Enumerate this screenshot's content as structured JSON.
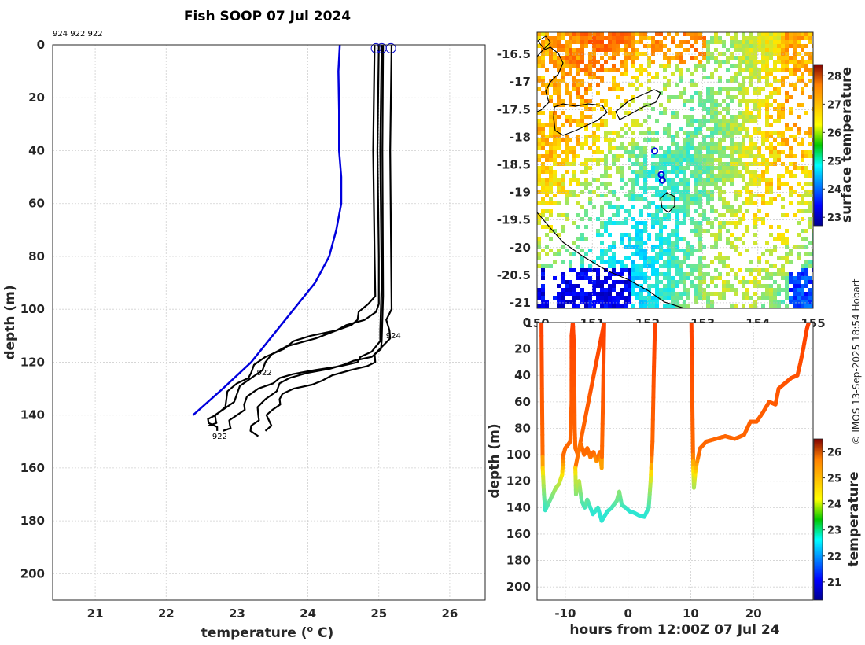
{
  "chart_data": [
    {
      "id": "profile",
      "type": "line",
      "title": "Fish SOOP 07 Jul 2024",
      "header_ids": "924 922 922",
      "xlabel": "temperature (",
      "xlabel_sup": "o",
      "xlabel_end": " C)",
      "ylabel": "depth (m)",
      "xlim": [
        20.4,
        26.5
      ],
      "ylim": [
        210,
        0
      ],
      "xticks": [
        "21",
        "22",
        "23",
        "24",
        "25",
        "26"
      ],
      "yticks": [
        "0",
        "20",
        "40",
        "60",
        "80",
        "100",
        "120",
        "140",
        "160",
        "180",
        "200"
      ],
      "series": [
        {
          "name": "climatology",
          "color": "#0000dd",
          "points": [
            [
              24.45,
              0
            ],
            [
              24.43,
              10
            ],
            [
              24.44,
              25
            ],
            [
              24.44,
              40
            ],
            [
              24.47,
              50
            ],
            [
              24.47,
              60
            ],
            [
              24.4,
              70
            ],
            [
              24.3,
              80
            ],
            [
              24.1,
              90
            ],
            [
              23.8,
              100
            ],
            [
              23.5,
              110
            ],
            [
              23.2,
              120
            ],
            [
              22.8,
              130
            ],
            [
              22.38,
              140
            ]
          ]
        },
        {
          "name": "profile-1",
          "color": "#000000",
          "points": [
            [
              24.94,
              0
            ],
            [
              24.92,
              40
            ],
            [
              24.94,
              80
            ],
            [
              24.95,
              95
            ],
            [
              24.85,
              98
            ],
            [
              24.7,
              104
            ],
            [
              24.4,
              108
            ],
            [
              23.8,
              112
            ],
            [
              23.4,
              118
            ],
            [
              23.2,
              124
            ],
            [
              23.0,
              128
            ],
            [
              22.85,
              134
            ],
            [
              22.7,
              140
            ],
            [
              22.6,
              143
            ],
            [
              22.72,
              146
            ]
          ]
        },
        {
          "name": "profile-2",
          "color": "#000000",
          "points": [
            [
              25.0,
              0
            ],
            [
              24.98,
              40
            ],
            [
              25.0,
              80
            ],
            [
              25.0,
              98
            ],
            [
              24.8,
              104
            ],
            [
              24.4,
              108
            ],
            [
              23.7,
              114
            ],
            [
              23.4,
              120
            ],
            [
              23.2,
              126
            ],
            [
              23.0,
              132
            ],
            [
              22.8,
              138
            ],
            [
              22.7,
              142
            ],
            [
              22.6,
              144
            ]
          ]
        },
        {
          "name": "profile-3",
          "color": "#000000",
          "points": [
            [
              25.04,
              0
            ],
            [
              25.02,
              40
            ],
            [
              25.04,
              90
            ],
            [
              25.02,
              108
            ],
            [
              24.9,
              116
            ],
            [
              24.7,
              120
            ],
            [
              24.1,
              123
            ],
            [
              23.6,
              126
            ],
            [
              23.3,
              130
            ],
            [
              23.1,
              136
            ],
            [
              23.0,
              140
            ],
            [
              22.9,
              144
            ],
            [
              22.8,
              146
            ]
          ]
        },
        {
          "name": "profile-4",
          "color": "#000000",
          "points": [
            [
              25.06,
              0
            ],
            [
              25.05,
              40
            ],
            [
              25.06,
              95
            ],
            [
              25.04,
              112
            ],
            [
              24.9,
              118
            ],
            [
              24.5,
              121
            ],
            [
              24.0,
              124
            ],
            [
              23.6,
              128
            ],
            [
              23.4,
              134
            ],
            [
              23.3,
              140
            ],
            [
              23.2,
              144
            ],
            [
              23.3,
              148
            ]
          ]
        },
        {
          "name": "profile-5",
          "color": "#000000",
          "points": [
            [
              25.18,
              0
            ],
            [
              25.16,
              40
            ],
            [
              25.18,
              100
            ],
            [
              25.15,
              108
            ],
            [
              25.05,
              114
            ],
            [
              24.95,
              120
            ],
            [
              24.6,
              123
            ],
            [
              24.2,
              127
            ],
            [
              23.8,
              130
            ],
            [
              23.6,
              134
            ],
            [
              23.5,
              138
            ],
            [
              23.45,
              142
            ],
            [
              23.4,
              146
            ]
          ]
        }
      ],
      "annotations": [
        {
          "text": "924",
          "x": 25.1,
          "y": 111
        },
        {
          "text": "922",
          "x": 23.28,
          "y": 125
        },
        {
          "text": "922",
          "x": 22.65,
          "y": 149
        }
      ],
      "surface_markers_x": [
        24.96,
        25.04,
        25.17
      ]
    },
    {
      "id": "map",
      "type": "heatmap",
      "xlim": [
        150,
        155
      ],
      "ylim": [
        -21.1,
        -16.1
      ],
      "xticks": [
        "150",
        "151",
        "152",
        "153",
        "154",
        "155"
      ],
      "yticks": [
        "-16.5",
        "-17",
        "-17.5",
        "-18",
        "-18.5",
        "-19",
        "-19.5",
        "-20",
        "-20.5",
        "-21"
      ],
      "colorbar": {
        "label": "surface temperature",
        "range": [
          22.7,
          28.4
        ],
        "ticks": [
          "23",
          "24",
          "25",
          "26",
          "27",
          "28"
        ]
      },
      "stations": [
        [
          152.13,
          -18.25
        ],
        [
          152.25,
          -18.68
        ],
        [
          152.27,
          -18.78
        ]
      ]
    },
    {
      "id": "timeseries",
      "type": "scatter",
      "xlabel": "hours from 12:00Z 07 Jul 24",
      "ylabel": "depth (m)",
      "xlim": [
        -14.5,
        29.5
      ],
      "ylim": [
        210,
        0
      ],
      "xticks": [
        "-10",
        "0",
        "10",
        "20"
      ],
      "yticks": [
        "0",
        "20",
        "40",
        "60",
        "80",
        "100",
        "120",
        "140",
        "160",
        "180",
        "200"
      ],
      "colorbar": {
        "label": "temperature",
        "range": [
          20.3,
          26.5
        ],
        "ticks": [
          "21",
          "22",
          "23",
          "24",
          "25",
          "26"
        ]
      },
      "track": [
        [
          -13.8,
          0
        ],
        [
          -13.7,
          60
        ],
        [
          -13.6,
          110
        ],
        [
          -13.4,
          130
        ],
        [
          -13.2,
          142
        ],
        [
          -12.5,
          135
        ],
        [
          -12,
          130
        ],
        [
          -11.5,
          125
        ],
        [
          -11,
          122
        ],
        [
          -10.5,
          115
        ],
        [
          -10.3,
          100
        ],
        [
          -10,
          95
        ],
        [
          -9.5,
          92
        ],
        [
          -9.2,
          90
        ],
        [
          -9,
          60
        ],
        [
          -9,
          10
        ],
        [
          -8.8,
          0
        ],
        [
          -8.6,
          20
        ],
        [
          -8.5,
          80
        ],
        [
          -8.4,
          95
        ],
        [
          -8.0,
          100
        ],
        [
          -7.5,
          92
        ],
        [
          -7,
          100
        ],
        [
          -6.5,
          95
        ],
        [
          -6,
          102
        ],
        [
          -5.5,
          98
        ],
        [
          -5,
          105
        ],
        [
          -4.5,
          98
        ],
        [
          -4.2,
          110
        ],
        [
          -4.0,
          60
        ],
        [
          -3.8,
          0
        ],
        [
          -8.4,
          110
        ],
        [
          -8.3,
          130
        ],
        [
          -7.8,
          120
        ],
        [
          -7.4,
          135
        ],
        [
          -6.9,
          140
        ],
        [
          -6.5,
          134
        ],
        [
          -5.6,
          145
        ],
        [
          -4.8,
          140
        ],
        [
          -4.2,
          150
        ],
        [
          -3.3,
          143
        ],
        [
          -2.6,
          140
        ],
        [
          -1.8,
          135
        ],
        [
          -1.4,
          128
        ],
        [
          -1.0,
          138
        ],
        [
          -0.4,
          140
        ],
        [
          0.3,
          143
        ],
        [
          1.0,
          144
        ],
        [
          1.8,
          146
        ],
        [
          2.6,
          147
        ],
        [
          3.3,
          140
        ],
        [
          3.6,
          120
        ],
        [
          3.9,
          90
        ],
        [
          4.1,
          40
        ],
        [
          4.3,
          0
        ],
        [
          10.1,
          0
        ],
        [
          10.2,
          40
        ],
        [
          10.3,
          80
        ],
        [
          10.4,
          110
        ],
        [
          10.5,
          125
        ],
        [
          10.8,
          110
        ],
        [
          11.5,
          95
        ],
        [
          12.5,
          90
        ],
        [
          14,
          88
        ],
        [
          15.5,
          86
        ],
        [
          17,
          88
        ],
        [
          18.5,
          85
        ],
        [
          19.5,
          75
        ],
        [
          20.5,
          75
        ],
        [
          21.5,
          68
        ],
        [
          22.5,
          60
        ],
        [
          23.5,
          62
        ],
        [
          24,
          50
        ],
        [
          25,
          46
        ],
        [
          26,
          42
        ],
        [
          27,
          40
        ],
        [
          27.5,
          30
        ],
        [
          28,
          18
        ],
        [
          28.5,
          5
        ],
        [
          28.8,
          0
        ]
      ]
    }
  ],
  "credit": "© IMOS 13-Sep-2025 18:54 Hobart"
}
